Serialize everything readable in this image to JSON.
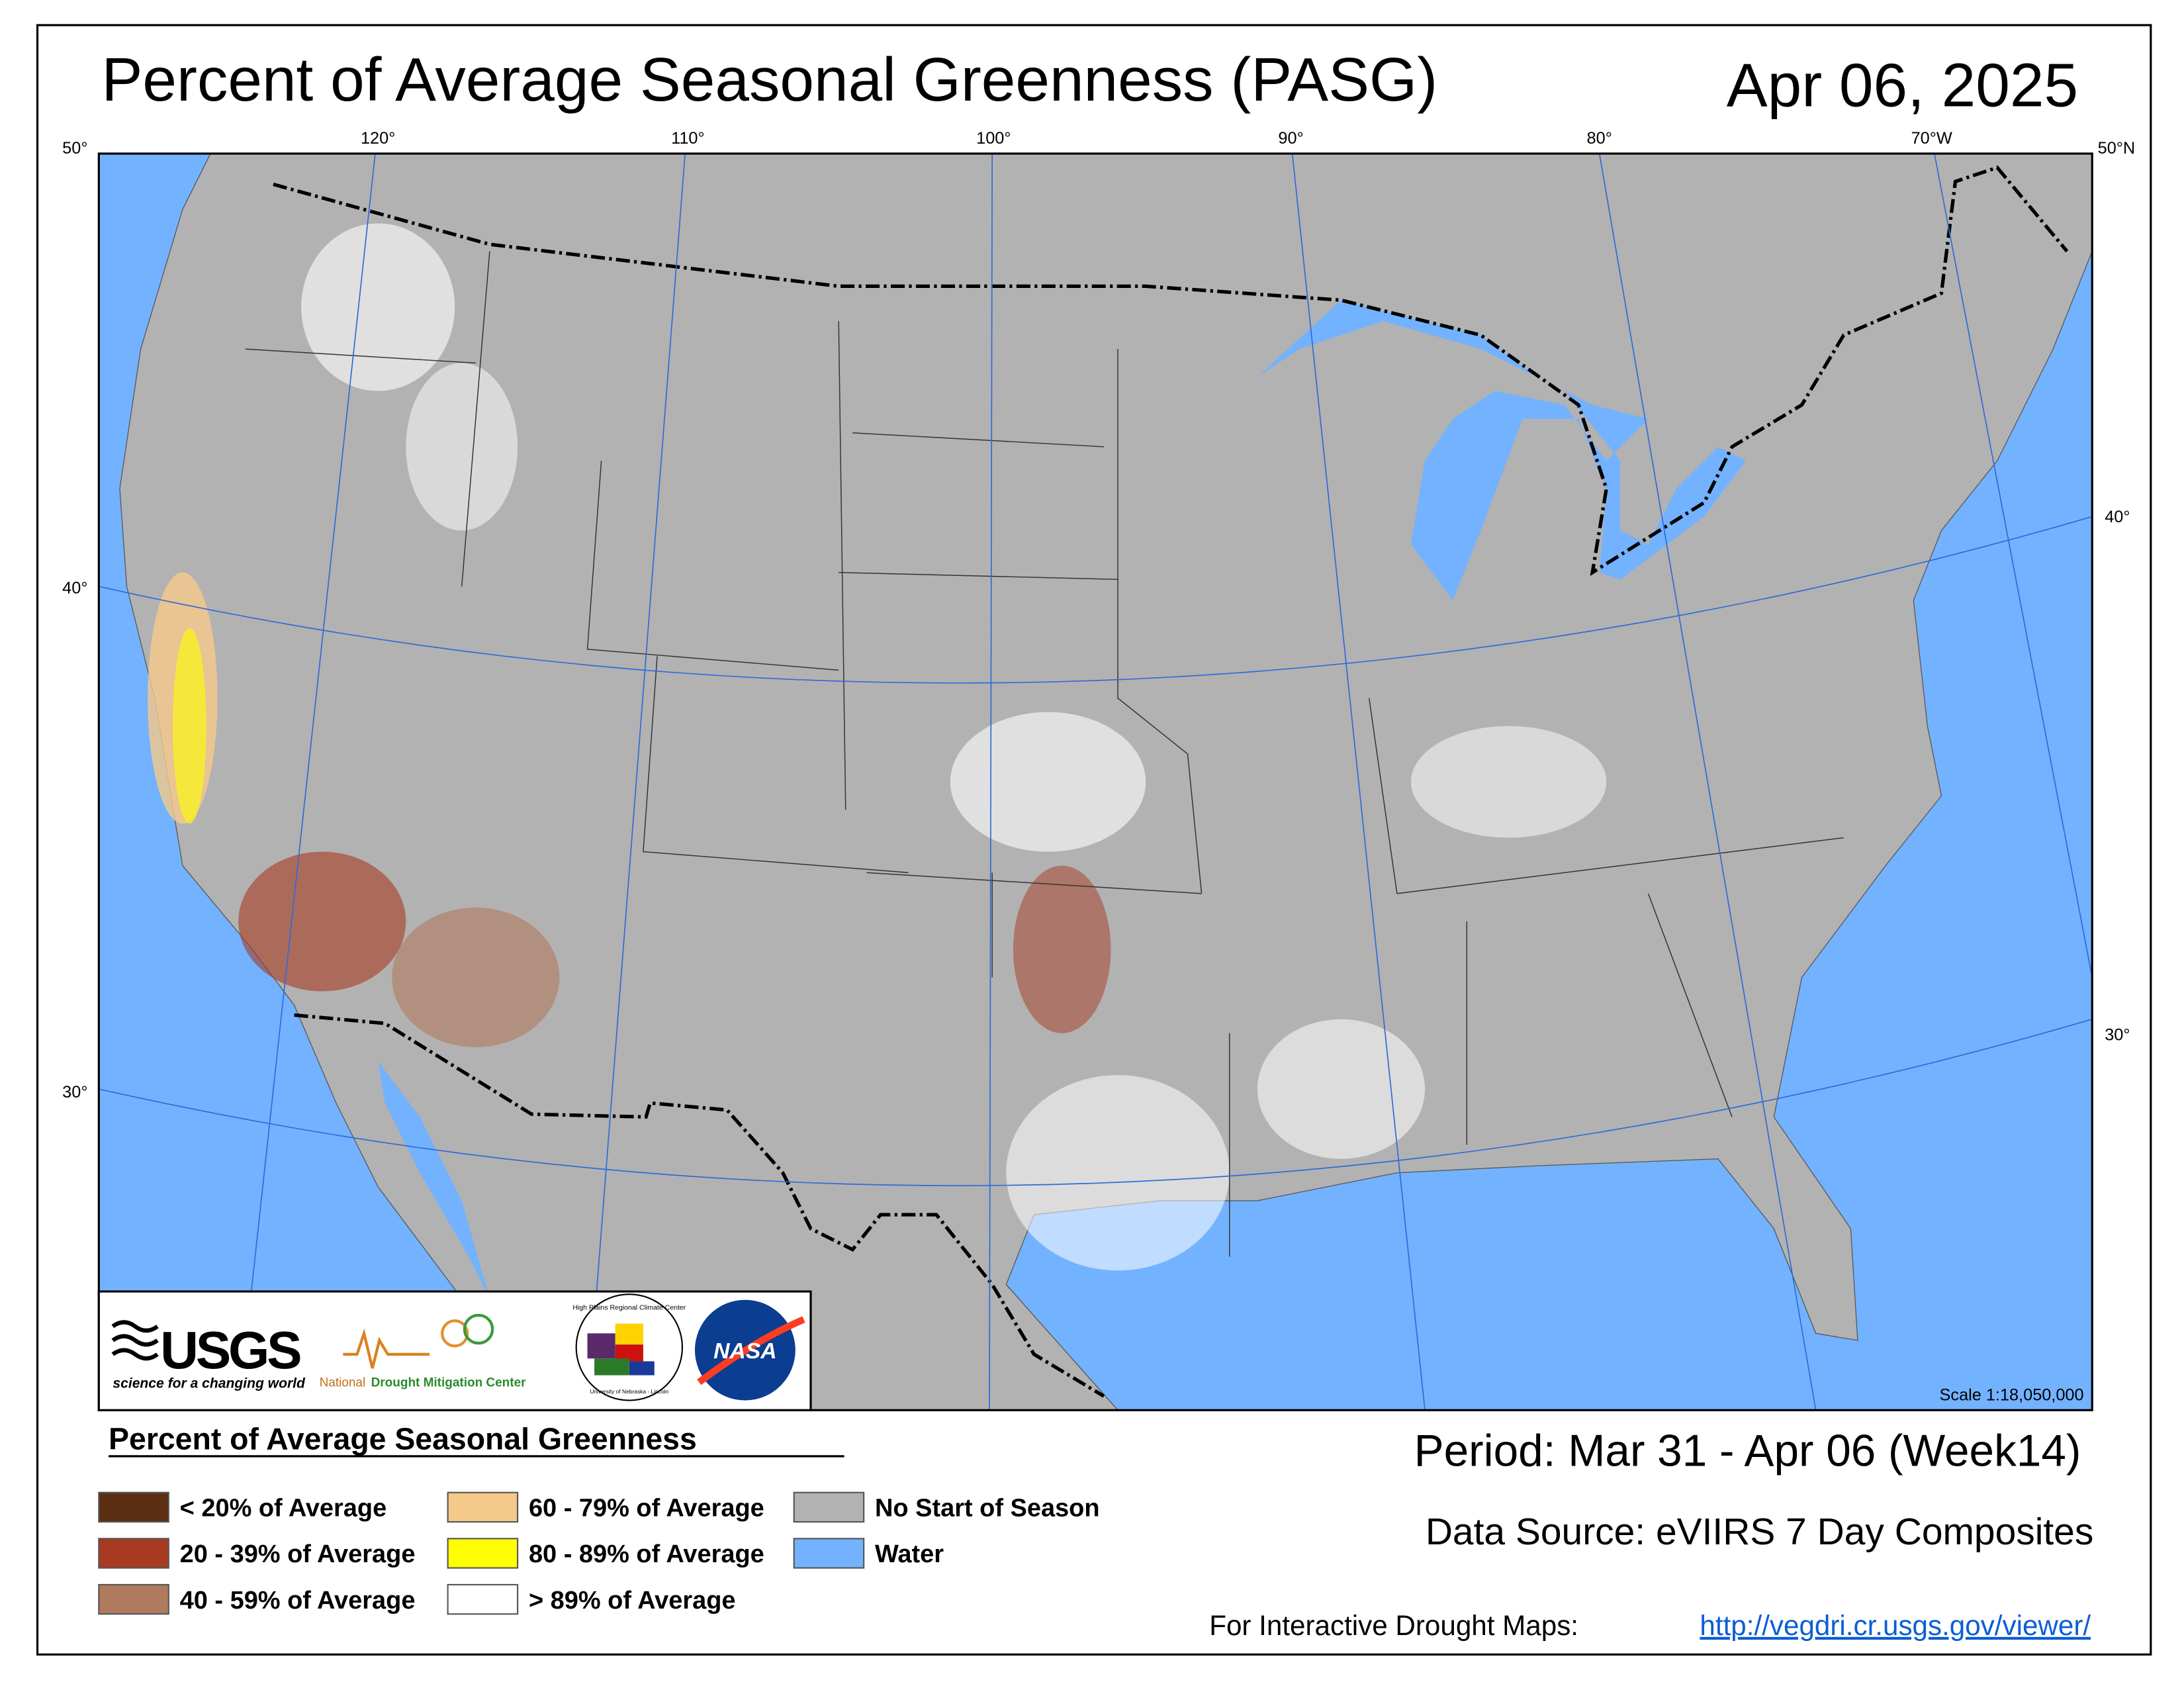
{
  "header": {
    "title": "Percent of Average Seasonal Greenness (PASG)",
    "date": "Apr 06, 2025"
  },
  "map": {
    "longitude_labels": [
      "120°",
      "110°",
      "100°",
      "90°",
      "80°",
      "70°W"
    ],
    "latitude_labels_left": [
      "50°",
      "40°",
      "30°"
    ],
    "latitude_labels_right": [
      "50°N",
      "40°",
      "30°"
    ],
    "scale": "Scale 1:18,050,000"
  },
  "logos": {
    "usgs": "USGS",
    "usgs_tagline": "science for a changing world",
    "ndmc_prefix": "National",
    "ndmc": "Drought Mitigation Center",
    "hprcc": "High Plains Regional Climate Center",
    "hprcc_sub": "University of Nebraska - Lincoln",
    "nasa": "NASA"
  },
  "legend": {
    "title": "Percent of Average Seasonal Greenness",
    "items": [
      {
        "label": "< 20% of Average",
        "color": "#5c2e14"
      },
      {
        "label": "20 - 39% of Average",
        "color": "#a83a22"
      },
      {
        "label": "40 - 59% of Average",
        "color": "#b07a5e"
      },
      {
        "label": "60 - 79% of Average",
        "color": "#f5c98a"
      },
      {
        "label": "80 - 89% of Average",
        "color": "#ffff00"
      },
      {
        "label": "> 89% of Average",
        "color": "#ffffff"
      },
      {
        "label": "No Start of Season",
        "color": "#b2b2b2"
      },
      {
        "label": "Water",
        "color": "#73b2ff"
      }
    ]
  },
  "footer": {
    "period": "Period:  Mar 31 - Apr 06 (Week14)",
    "source": "Data Source:  eVIIRS 7 Day Composites",
    "link_label": "For Interactive Drought Maps:",
    "link": "http://vegdri.cr.usgs.gov/viewer/"
  }
}
